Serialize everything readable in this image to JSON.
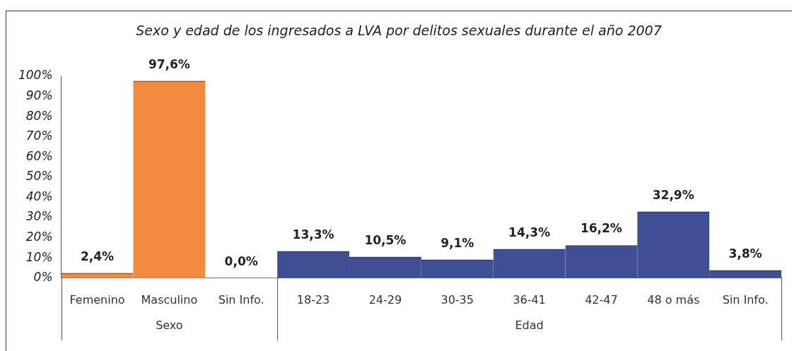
{
  "chart_data": {
    "type": "bar",
    "title": "Sexo y edad de los ingresados a LVA por delitos sexuales durante el año 2007",
    "categories": [
      "Femenino",
      "Masculino",
      "Sin Info.",
      "18-23",
      "24-29",
      "30-35",
      "36-41",
      "42-47",
      "48 o más",
      "Sin Info."
    ],
    "values": [
      2.4,
      97.6,
      0.0,
      13.3,
      10.5,
      9.1,
      14.3,
      16.2,
      32.9,
      3.8
    ],
    "colors": [
      "#f28a3f",
      "#f28a3f",
      "#f28a3f",
      "#3f4f95",
      "#3f4f95",
      "#3f4f95",
      "#3f4f95",
      "#3f4f95",
      "#3f4f95",
      "#3f4f95"
    ],
    "value_labels": [
      "2,4%",
      "97,6%",
      "0,0%",
      "13,3%",
      "10,5%",
      "9,1%",
      "14,3%",
      "16,2%",
      "32,9%",
      "3,8%"
    ],
    "ylim": [
      0,
      100
    ],
    "yticks": [
      {
        "value": 0,
        "label": "0%"
      },
      {
        "value": 10,
        "label": "10%"
      },
      {
        "value": 20,
        "label": "20%"
      },
      {
        "value": 30,
        "label": "30%"
      },
      {
        "value": 40,
        "label": "40%"
      },
      {
        "value": 50,
        "label": "50%"
      },
      {
        "value": 60,
        "label": "60%"
      },
      {
        "value": 70,
        "label": "70%"
      },
      {
        "value": 80,
        "label": "80%"
      },
      {
        "value": 90,
        "label": "90%"
      },
      {
        "value": 100,
        "label": "100%"
      }
    ],
    "annotations": [
      "Sexo",
      "Edad"
    ],
    "grid": false,
    "legend": false
  }
}
